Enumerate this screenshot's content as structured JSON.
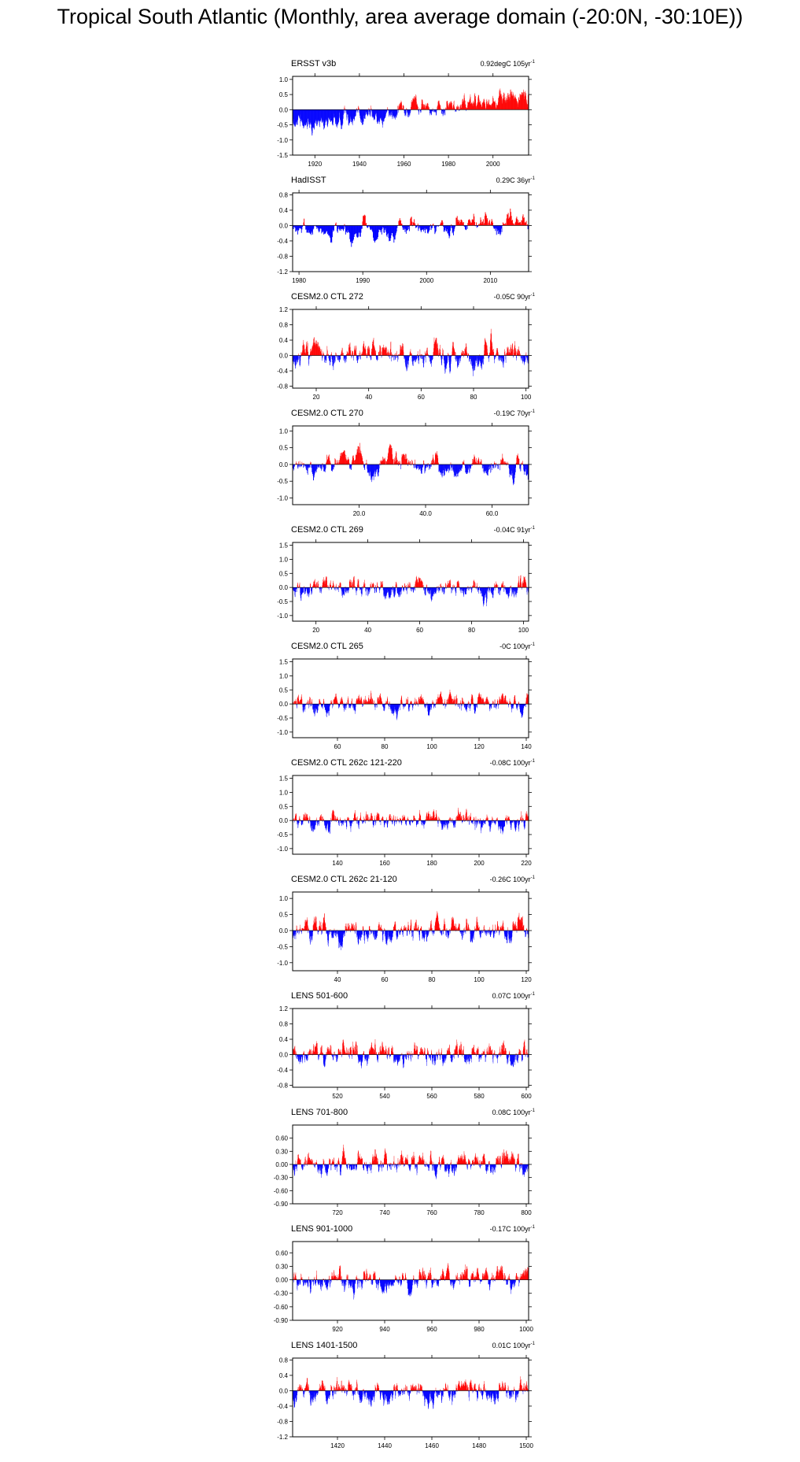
{
  "title": "Tropical South Atlantic (Monthly, area average domain (-20:0N, -30:10E))",
  "colors": {
    "positive": "#ff0000",
    "negative": "#0000ff",
    "axis": "#000000",
    "zero_line": "#000000"
  },
  "chart_data": [
    {
      "type": "bar",
      "name": "ERSST v3b",
      "trend": "0.92degC 105yr",
      "trend_exp": "-1",
      "x_range": [
        1910,
        2016
      ],
      "ylim": [
        -1.5,
        1.1
      ],
      "yticks": [
        1.0,
        0.5,
        0.0,
        -0.5,
        -1.0,
        -1.5
      ],
      "ytick_labels": [
        "1.0",
        "0.5",
        "0.0",
        "-0.5",
        "-1.0",
        "-1.5"
      ],
      "xticks": [
        1920,
        1940,
        1960,
        1980,
        2000
      ],
      "xtick_labels": [
        "1920",
        "1940",
        "1960",
        "1980",
        "2000"
      ],
      "trend_slope": 0.0088,
      "amp": 0.32,
      "seed": 3
    },
    {
      "type": "bar",
      "name": "HadISST",
      "trend": "0.29C 36yr",
      "trend_exp": "-1",
      "x_range": [
        1979,
        2016
      ],
      "ylim": [
        -1.2,
        0.85
      ],
      "yticks": [
        0.8,
        0.4,
        0.0,
        -0.4,
        -0.8,
        -1.2
      ],
      "ytick_labels": [
        "0.8",
        "0.4",
        "0.0",
        "-0.4",
        "-0.8",
        "-1.2"
      ],
      "xticks": [
        1980,
        1990,
        2000,
        2010
      ],
      "xtick_labels": [
        "1980",
        "1990",
        "2000",
        "2010"
      ],
      "trend_slope": 0.008,
      "amp": 0.34,
      "seed": 7
    },
    {
      "type": "bar",
      "name": "CESM2.0 CTL 272",
      "trend": "-0.05C 90yr",
      "trend_exp": "-1",
      "x_range": [
        11,
        101
      ],
      "ylim": [
        -0.85,
        1.2
      ],
      "yticks": [
        1.2,
        0.8,
        0.4,
        0.0,
        -0.4,
        -0.8
      ],
      "ytick_labels": [
        "1.2",
        "0.8",
        "0.4",
        "0.0",
        "-0.4",
        "-0.8"
      ],
      "xticks": [
        20,
        40,
        60,
        80,
        100
      ],
      "xtick_labels": [
        "20",
        "40",
        "60",
        "80",
        "100"
      ],
      "trend_slope": 0,
      "amp": 0.34,
      "seed": 11
    },
    {
      "type": "bar",
      "name": "CESM2.0 CTL 270",
      "trend": "-0.19C 70yr",
      "trend_exp": "-1",
      "x_range": [
        0,
        71
      ],
      "ylim": [
        -1.2,
        1.15
      ],
      "yticks": [
        1.0,
        0.5,
        0.0,
        -0.5,
        -1.0
      ],
      "ytick_labels": [
        "1.0",
        "0.5",
        "0.0",
        "-0.5",
        "-1.0"
      ],
      "xticks": [
        20,
        40,
        60
      ],
      "xtick_labels": [
        "20.0",
        "40.0",
        "60.0"
      ],
      "trend_slope": 0,
      "amp": 0.36,
      "seed": 19
    },
    {
      "type": "bar",
      "name": "CESM2.0 CTL 269",
      "trend": "-0.04C 91yr",
      "trend_exp": "-1",
      "x_range": [
        11,
        102
      ],
      "ylim": [
        -1.2,
        1.6
      ],
      "yticks": [
        1.5,
        1.0,
        0.5,
        0.0,
        -0.5,
        -1.0
      ],
      "ytick_labels": [
        "1.5",
        "1.0",
        "0.5",
        "0.0",
        "-0.5",
        "-1.0"
      ],
      "xticks": [
        20,
        40,
        60,
        80,
        100
      ],
      "xtick_labels": [
        "20",
        "40",
        "60",
        "80",
        "100"
      ],
      "trend_slope": 0,
      "amp": 0.38,
      "seed": 23
    },
    {
      "type": "bar",
      "name": "CESM2.0 CTL 265",
      "trend": "-0C 100yr",
      "trend_exp": "-1",
      "x_range": [
        41,
        141
      ],
      "ylim": [
        -1.2,
        1.6
      ],
      "yticks": [
        1.5,
        1.0,
        0.5,
        0.0,
        -0.5,
        -1.0
      ],
      "ytick_labels": [
        "1.5",
        "1.0",
        "0.5",
        "0.0",
        "-0.5",
        "-1.0"
      ],
      "xticks": [
        60,
        80,
        100,
        120,
        140
      ],
      "xtick_labels": [
        "60",
        "80",
        "100",
        "120",
        "140"
      ],
      "trend_slope": 0,
      "amp": 0.34,
      "seed": 29
    },
    {
      "type": "bar",
      "name": "CESM2.0 CTL 262c 121-220",
      "trend": "-0.08C 100yr",
      "trend_exp": "-1",
      "x_range": [
        121,
        221
      ],
      "ylim": [
        -1.2,
        1.6
      ],
      "yticks": [
        1.5,
        1.0,
        0.5,
        0.0,
        -0.5,
        -1.0
      ],
      "ytick_labels": [
        "1.5",
        "1.0",
        "0.5",
        "0.0",
        "-0.5",
        "-1.0"
      ],
      "xticks": [
        140,
        160,
        180,
        200,
        220
      ],
      "xtick_labels": [
        "140",
        "160",
        "180",
        "200",
        "220"
      ],
      "trend_slope": 0,
      "amp": 0.36,
      "seed": 31
    },
    {
      "type": "bar",
      "name": "CESM2.0 CTL 262c 21-120",
      "trend": "-0.26C 100yr",
      "trend_exp": "-1",
      "x_range": [
        21,
        121
      ],
      "ylim": [
        -1.25,
        1.2
      ],
      "yticks": [
        1.0,
        0.5,
        0.0,
        -0.5,
        -1.0
      ],
      "ytick_labels": [
        "1.0",
        "0.5",
        "0.0",
        "-0.5",
        "-1.0"
      ],
      "xticks": [
        40,
        60,
        80,
        100,
        120
      ],
      "xtick_labels": [
        "40",
        "60",
        "80",
        "100",
        "120"
      ],
      "trend_slope": 0,
      "amp": 0.38,
      "seed": 37
    },
    {
      "type": "bar",
      "name": "LENS 501-600",
      "trend": "0.07C 100yr",
      "trend_exp": "-1",
      "x_range": [
        501,
        601
      ],
      "ylim": [
        -0.85,
        1.2
      ],
      "yticks": [
        1.2,
        0.8,
        0.4,
        0.0,
        -0.4,
        -0.8
      ],
      "ytick_labels": [
        "1.2",
        "0.8",
        "0.4",
        "0.0",
        "-0.4",
        "-0.8"
      ],
      "xticks": [
        520,
        540,
        560,
        580,
        600
      ],
      "xtick_labels": [
        "520",
        "540",
        "560",
        "580",
        "600"
      ],
      "trend_slope": 0,
      "amp": 0.3,
      "seed": 41
    },
    {
      "type": "bar",
      "name": "LENS 701-800",
      "trend": "0.08C 100yr",
      "trend_exp": "-1",
      "x_range": [
        701,
        801
      ],
      "ylim": [
        -0.9,
        0.9
      ],
      "yticks": [
        0.6,
        0.3,
        0.0,
        -0.3,
        -0.6,
        -0.9
      ],
      "ytick_labels": [
        "0.60",
        "0.30",
        "0.00",
        "-0.30",
        "-0.60",
        "-0.90"
      ],
      "xticks": [
        720,
        740,
        760,
        780,
        800
      ],
      "xtick_labels": [
        "720",
        "740",
        "760",
        "780",
        "800"
      ],
      "trend_slope": 0,
      "amp": 0.26,
      "seed": 43
    },
    {
      "type": "bar",
      "name": "LENS 901-1000",
      "trend": "-0.17C 100yr",
      "trend_exp": "-1",
      "x_range": [
        901,
        1001
      ],
      "ylim": [
        -0.9,
        0.85
      ],
      "yticks": [
        0.6,
        0.3,
        0.0,
        -0.3,
        -0.6,
        -0.9
      ],
      "ytick_labels": [
        "0.60",
        "0.30",
        "0.00",
        "-0.30",
        "-0.60",
        "-0.90"
      ],
      "xticks": [
        920,
        940,
        960,
        980,
        1000
      ],
      "xtick_labels": [
        "920",
        "940",
        "960",
        "980",
        "1000"
      ],
      "trend_slope": 0,
      "amp": 0.26,
      "seed": 47
    },
    {
      "type": "bar",
      "name": "LENS 1401-1500",
      "trend": "0.01C 100yr",
      "trend_exp": "-1",
      "x_range": [
        1401,
        1501
      ],
      "ylim": [
        -1.2,
        0.85
      ],
      "yticks": [
        0.8,
        0.4,
        0.0,
        -0.4,
        -0.8,
        -1.2
      ],
      "ytick_labels": [
        "0.8",
        "0.4",
        "0.0",
        "-0.4",
        "-0.8",
        "-1.2"
      ],
      "xticks": [
        1420,
        1440,
        1460,
        1480,
        1500
      ],
      "xtick_labels": [
        "1420",
        "1440",
        "1460",
        "1480",
        "1500"
      ],
      "trend_slope": 0,
      "amp": 0.3,
      "seed": 53
    }
  ]
}
